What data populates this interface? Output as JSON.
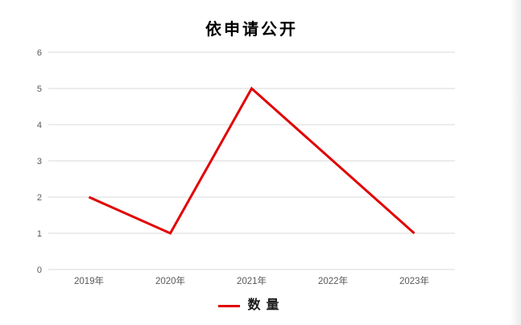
{
  "page": {
    "background": "#ffffff",
    "edge_shadow_color": "#ececec"
  },
  "chart_data": {
    "type": "line",
    "title": "依申请公开",
    "categories": [
      "2019年",
      "2020年",
      "2021年",
      "2022年",
      "2023年"
    ],
    "series": [
      {
        "name": "数量",
        "values": [
          2,
          1,
          5,
          3,
          1
        ],
        "color": "#e10000"
      }
    ],
    "xlabel": "",
    "ylabel": "",
    "ylim": [
      0,
      6
    ],
    "yticks": [
      0,
      1,
      2,
      3,
      4,
      5,
      6
    ],
    "grid": true,
    "legend_position": "bottom",
    "colors": {
      "gridline": "#d9d9d9",
      "tick_label": "#595959",
      "title": "#000000"
    }
  }
}
